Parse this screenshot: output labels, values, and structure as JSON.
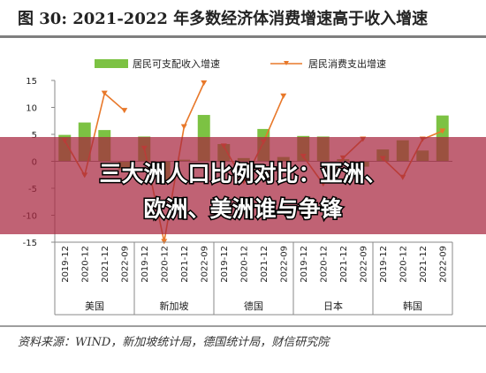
{
  "header": {
    "title": "图 30:  2021-2022 年多数经济体消费增速高于收入增速"
  },
  "overlay": {
    "line1": "三大洲人口比例对比：亚洲、",
    "line2": "欧洲、美洲谁与争锋"
  },
  "footer": {
    "source": "资料来源：WIND，新加坡统计局，德国统计局，财信研究院"
  },
  "colors": {
    "bar": "#7CC243",
    "line": "#E8782A",
    "banner": "rgba(168,38,62,0.72)",
    "title_bar": "#7F7F7F"
  },
  "chart_data": {
    "type": "bar",
    "ylim": [
      -15,
      15
    ],
    "yticks": [
      -15,
      -10,
      -5,
      0,
      5,
      10,
      15
    ],
    "groups": [
      {
        "name": "美国",
        "categories": [
          "2019-12",
          "2020-12",
          "2021-12",
          "2022-09"
        ]
      },
      {
        "name": "新加坡",
        "categories": [
          "2019-12",
          "2020-12",
          "2021-12",
          "2022-09"
        ]
      },
      {
        "name": "德国",
        "categories": [
          "2019-12",
          "2020-12",
          "2021-12",
          "2022-09"
        ]
      },
      {
        "name": "日本",
        "categories": [
          "2019-12",
          "2020-12",
          "2021-12",
          "2022-09"
        ]
      },
      {
        "name": "韩国",
        "categories": [
          "2019-12",
          "2020-12",
          "2021-12",
          "2022-09"
        ]
      }
    ],
    "series": [
      {
        "name": "居民可支配收入增速",
        "type": "bar",
        "values": [
          4.9,
          7.2,
          5.8,
          -1.5,
          4.6,
          -4.0,
          0.3,
          8.6,
          3.2,
          0.6,
          6.0,
          0.8,
          4.7,
          4.6,
          0.4,
          -1.0,
          2.2,
          3.9,
          2.0,
          8.5
        ]
      },
      {
        "name": "居民消费支出增速",
        "type": "line",
        "values": [
          3.8,
          -2.6,
          12.6,
          9.4,
          2.4,
          -14.9,
          6.4,
          14.5,
          2.8,
          -3.8,
          3.6,
          12.1,
          0.9,
          -4.2,
          0.6,
          4.1,
          0.5,
          -3.0,
          4.1,
          5.6
        ]
      }
    ]
  }
}
